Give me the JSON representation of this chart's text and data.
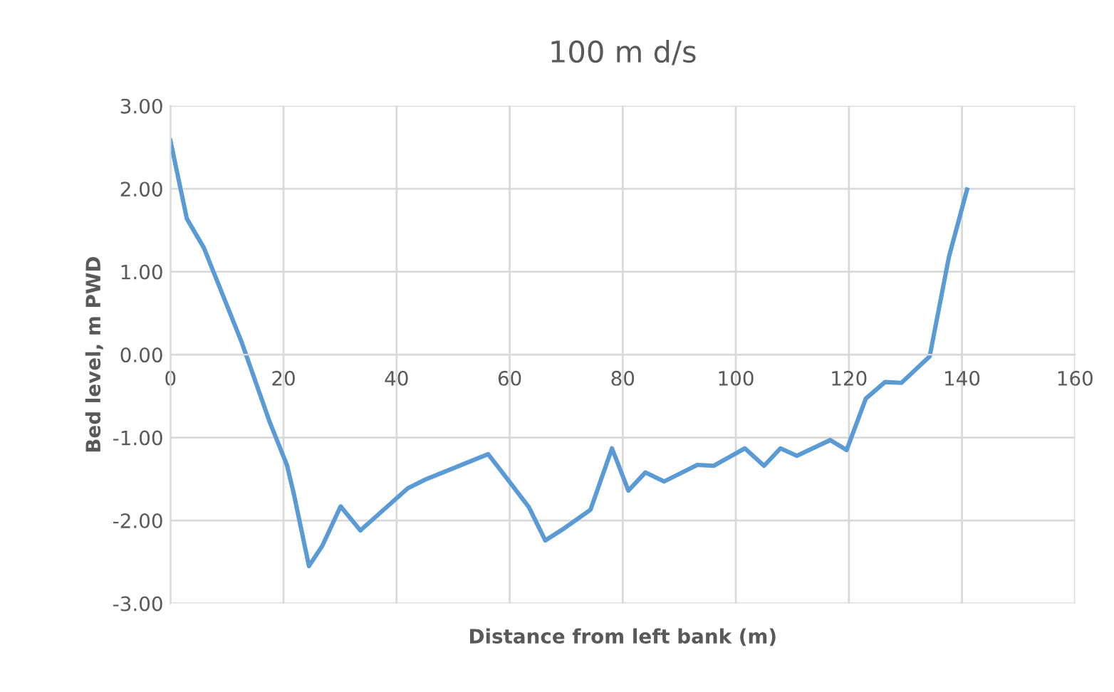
{
  "chart_data": {
    "type": "line",
    "title": "100 m d/s",
    "xlabel": "Distance from left bank (m)",
    "ylabel": "Bed level, m PWD",
    "x": [
      0,
      2.9,
      5.9,
      12.6,
      17.6,
      20.6,
      21.8,
      24.5,
      26.9,
      30.1,
      33.6,
      42,
      45.3,
      56.2,
      59.6,
      63.4,
      66.3,
      69.3,
      74.3,
      78.1,
      81.0,
      84.0,
      87.3,
      93.2,
      96.1,
      101.6,
      105,
      107.9,
      110.8,
      116.7,
      119.6,
      123,
      126.4,
      129.3,
      134.3,
      137.7,
      140.9
    ],
    "series": [
      {
        "color": "#5b9bd5",
        "values": [
          2.58,
          1.64,
          1.29,
          0.15,
          -0.82,
          -1.33,
          -1.67,
          -2.55,
          -2.3,
          -1.83,
          -2.12,
          -1.61,
          -1.5,
          -1.2,
          -1.5,
          -1.84,
          -2.24,
          -2.11,
          -1.87,
          -1.13,
          -1.64,
          -1.42,
          -1.53,
          -1.33,
          -1.34,
          -1.13,
          -1.34,
          -1.13,
          -1.22,
          -1.03,
          -1.15,
          -0.53,
          -0.33,
          -0.34,
          -0.02,
          1.18,
          1.99
        ]
      }
    ],
    "xlim": [
      0,
      160
    ],
    "xticks": [
      0,
      20,
      40,
      60,
      80,
      100,
      120,
      140,
      160
    ],
    "ylim": [
      -3,
      3
    ],
    "yticks": [
      {
        "value": -3,
        "label": "-3.00"
      },
      {
        "value": -2,
        "label": "-2.00"
      },
      {
        "value": -1,
        "label": "-1.00"
      },
      {
        "value": 0,
        "label": "0.00"
      },
      {
        "value": 1,
        "label": "1.00"
      },
      {
        "value": 2,
        "label": "2.00"
      },
      {
        "value": 3,
        "label": "3.00"
      }
    ],
    "grid": true,
    "marker": "none",
    "line_style": "solid"
  }
}
